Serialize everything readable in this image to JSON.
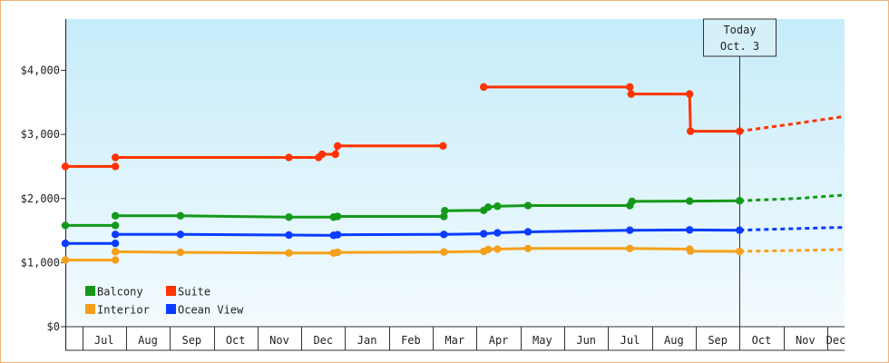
{
  "chart_data": {
    "type": "line",
    "y_ticks": [
      {
        "value": 0,
        "label": "$0"
      },
      {
        "value": 1000,
        "label": "$1,000"
      },
      {
        "value": 2000,
        "label": "$2,000"
      },
      {
        "value": 3000,
        "label": "$3,000"
      },
      {
        "value": 4000,
        "label": "$4,000"
      }
    ],
    "ylim": [
      0,
      4800
    ],
    "xlim": [
      0,
      17.6
    ],
    "x_categories": [
      "Jul",
      "Aug",
      "Sep",
      "Oct",
      "Nov",
      "Dec",
      "Jan",
      "Feb",
      "Mar",
      "Apr",
      "May",
      "Jun",
      "Jul",
      "Aug",
      "Sep",
      "Oct",
      "Nov",
      "Dec"
    ],
    "category_bounds": [
      0.38,
      1.37,
      2.36,
      3.35,
      4.34,
      5.33,
      6.32,
      7.31,
      8.3,
      9.29,
      10.28,
      11.27,
      12.26,
      13.25,
      14.24,
      15.23,
      16.22,
      17.21,
      17.6
    ],
    "today": {
      "x": 15.23,
      "line1": "Today",
      "line2": "Oct. 3"
    },
    "grid": false,
    "legend_position": "bottom-left",
    "series": [
      {
        "name": "Balcony",
        "color": "#14991a",
        "points": [
          [
            0,
            1580
          ],
          [
            1.13,
            1580
          ],
          [
            1.13,
            1730
          ],
          [
            2.6,
            1730
          ],
          [
            5.05,
            1710
          ],
          [
            6.06,
            1710
          ],
          [
            6.15,
            1720
          ],
          [
            8.55,
            1720
          ],
          [
            8.57,
            1810
          ],
          [
            9.45,
            1815
          ],
          [
            9.55,
            1865
          ],
          [
            9.76,
            1880
          ],
          [
            10.45,
            1890
          ],
          [
            12.75,
            1890
          ],
          [
            12.8,
            1955
          ],
          [
            14.1,
            1960
          ],
          [
            15.23,
            1965
          ]
        ],
        "segments": [
          [
            0,
            1
          ],
          [
            2,
            16
          ]
        ],
        "projection": [
          [
            15.23,
            1965
          ],
          [
            16.5,
            2000
          ],
          [
            17.6,
            2055
          ]
        ]
      },
      {
        "name": "Suite",
        "color": "#ff3300",
        "points": [
          [
            0,
            2500
          ],
          [
            1.13,
            2500
          ],
          [
            1.13,
            2640
          ],
          [
            5.05,
            2640
          ],
          [
            5.72,
            2640
          ],
          [
            5.8,
            2690
          ],
          [
            6.1,
            2690
          ],
          [
            6.15,
            2820
          ],
          [
            8.53,
            2820
          ],
          [
            9.45,
            3740
          ],
          [
            12.75,
            3740
          ],
          [
            12.78,
            3630
          ],
          [
            14.1,
            3630
          ],
          [
            14.12,
            3050
          ],
          [
            15.23,
            3050
          ]
        ],
        "segments": [
          [
            0,
            1
          ],
          [
            2,
            8
          ],
          [
            9,
            14
          ]
        ],
        "projection": [
          [
            15.23,
            3050
          ],
          [
            16.5,
            3170
          ],
          [
            17.6,
            3280
          ]
        ]
      },
      {
        "name": "Interior",
        "color": "#f5a01a",
        "points": [
          [
            0,
            1040
          ],
          [
            1.13,
            1040
          ],
          [
            1.13,
            1170
          ],
          [
            2.6,
            1160
          ],
          [
            5.05,
            1150
          ],
          [
            6.06,
            1150
          ],
          [
            6.15,
            1160
          ],
          [
            8.55,
            1165
          ],
          [
            9.45,
            1175
          ],
          [
            9.55,
            1205
          ],
          [
            9.76,
            1210
          ],
          [
            10.45,
            1220
          ],
          [
            12.75,
            1220
          ],
          [
            14.1,
            1210
          ],
          [
            14.12,
            1180
          ],
          [
            15.23,
            1175
          ]
        ],
        "segments": [
          [
            0,
            1
          ],
          [
            2,
            15
          ]
        ],
        "projection": [
          [
            15.23,
            1175
          ],
          [
            16.5,
            1190
          ],
          [
            17.6,
            1205
          ]
        ]
      },
      {
        "name": "Ocean View",
        "color": "#0a3cff",
        "points": [
          [
            0,
            1300
          ],
          [
            1.13,
            1300
          ],
          [
            1.13,
            1440
          ],
          [
            2.6,
            1440
          ],
          [
            5.05,
            1430
          ],
          [
            6.06,
            1425
          ],
          [
            6.15,
            1435
          ],
          [
            8.55,
            1440
          ],
          [
            9.45,
            1450
          ],
          [
            9.76,
            1465
          ],
          [
            10.45,
            1480
          ],
          [
            12.75,
            1505
          ],
          [
            14.1,
            1510
          ],
          [
            15.23,
            1505
          ]
        ],
        "segments": [
          [
            0,
            1
          ],
          [
            2,
            13
          ]
        ],
        "projection": [
          [
            15.23,
            1505
          ],
          [
            16.5,
            1530
          ],
          [
            17.6,
            1550
          ]
        ]
      }
    ]
  }
}
